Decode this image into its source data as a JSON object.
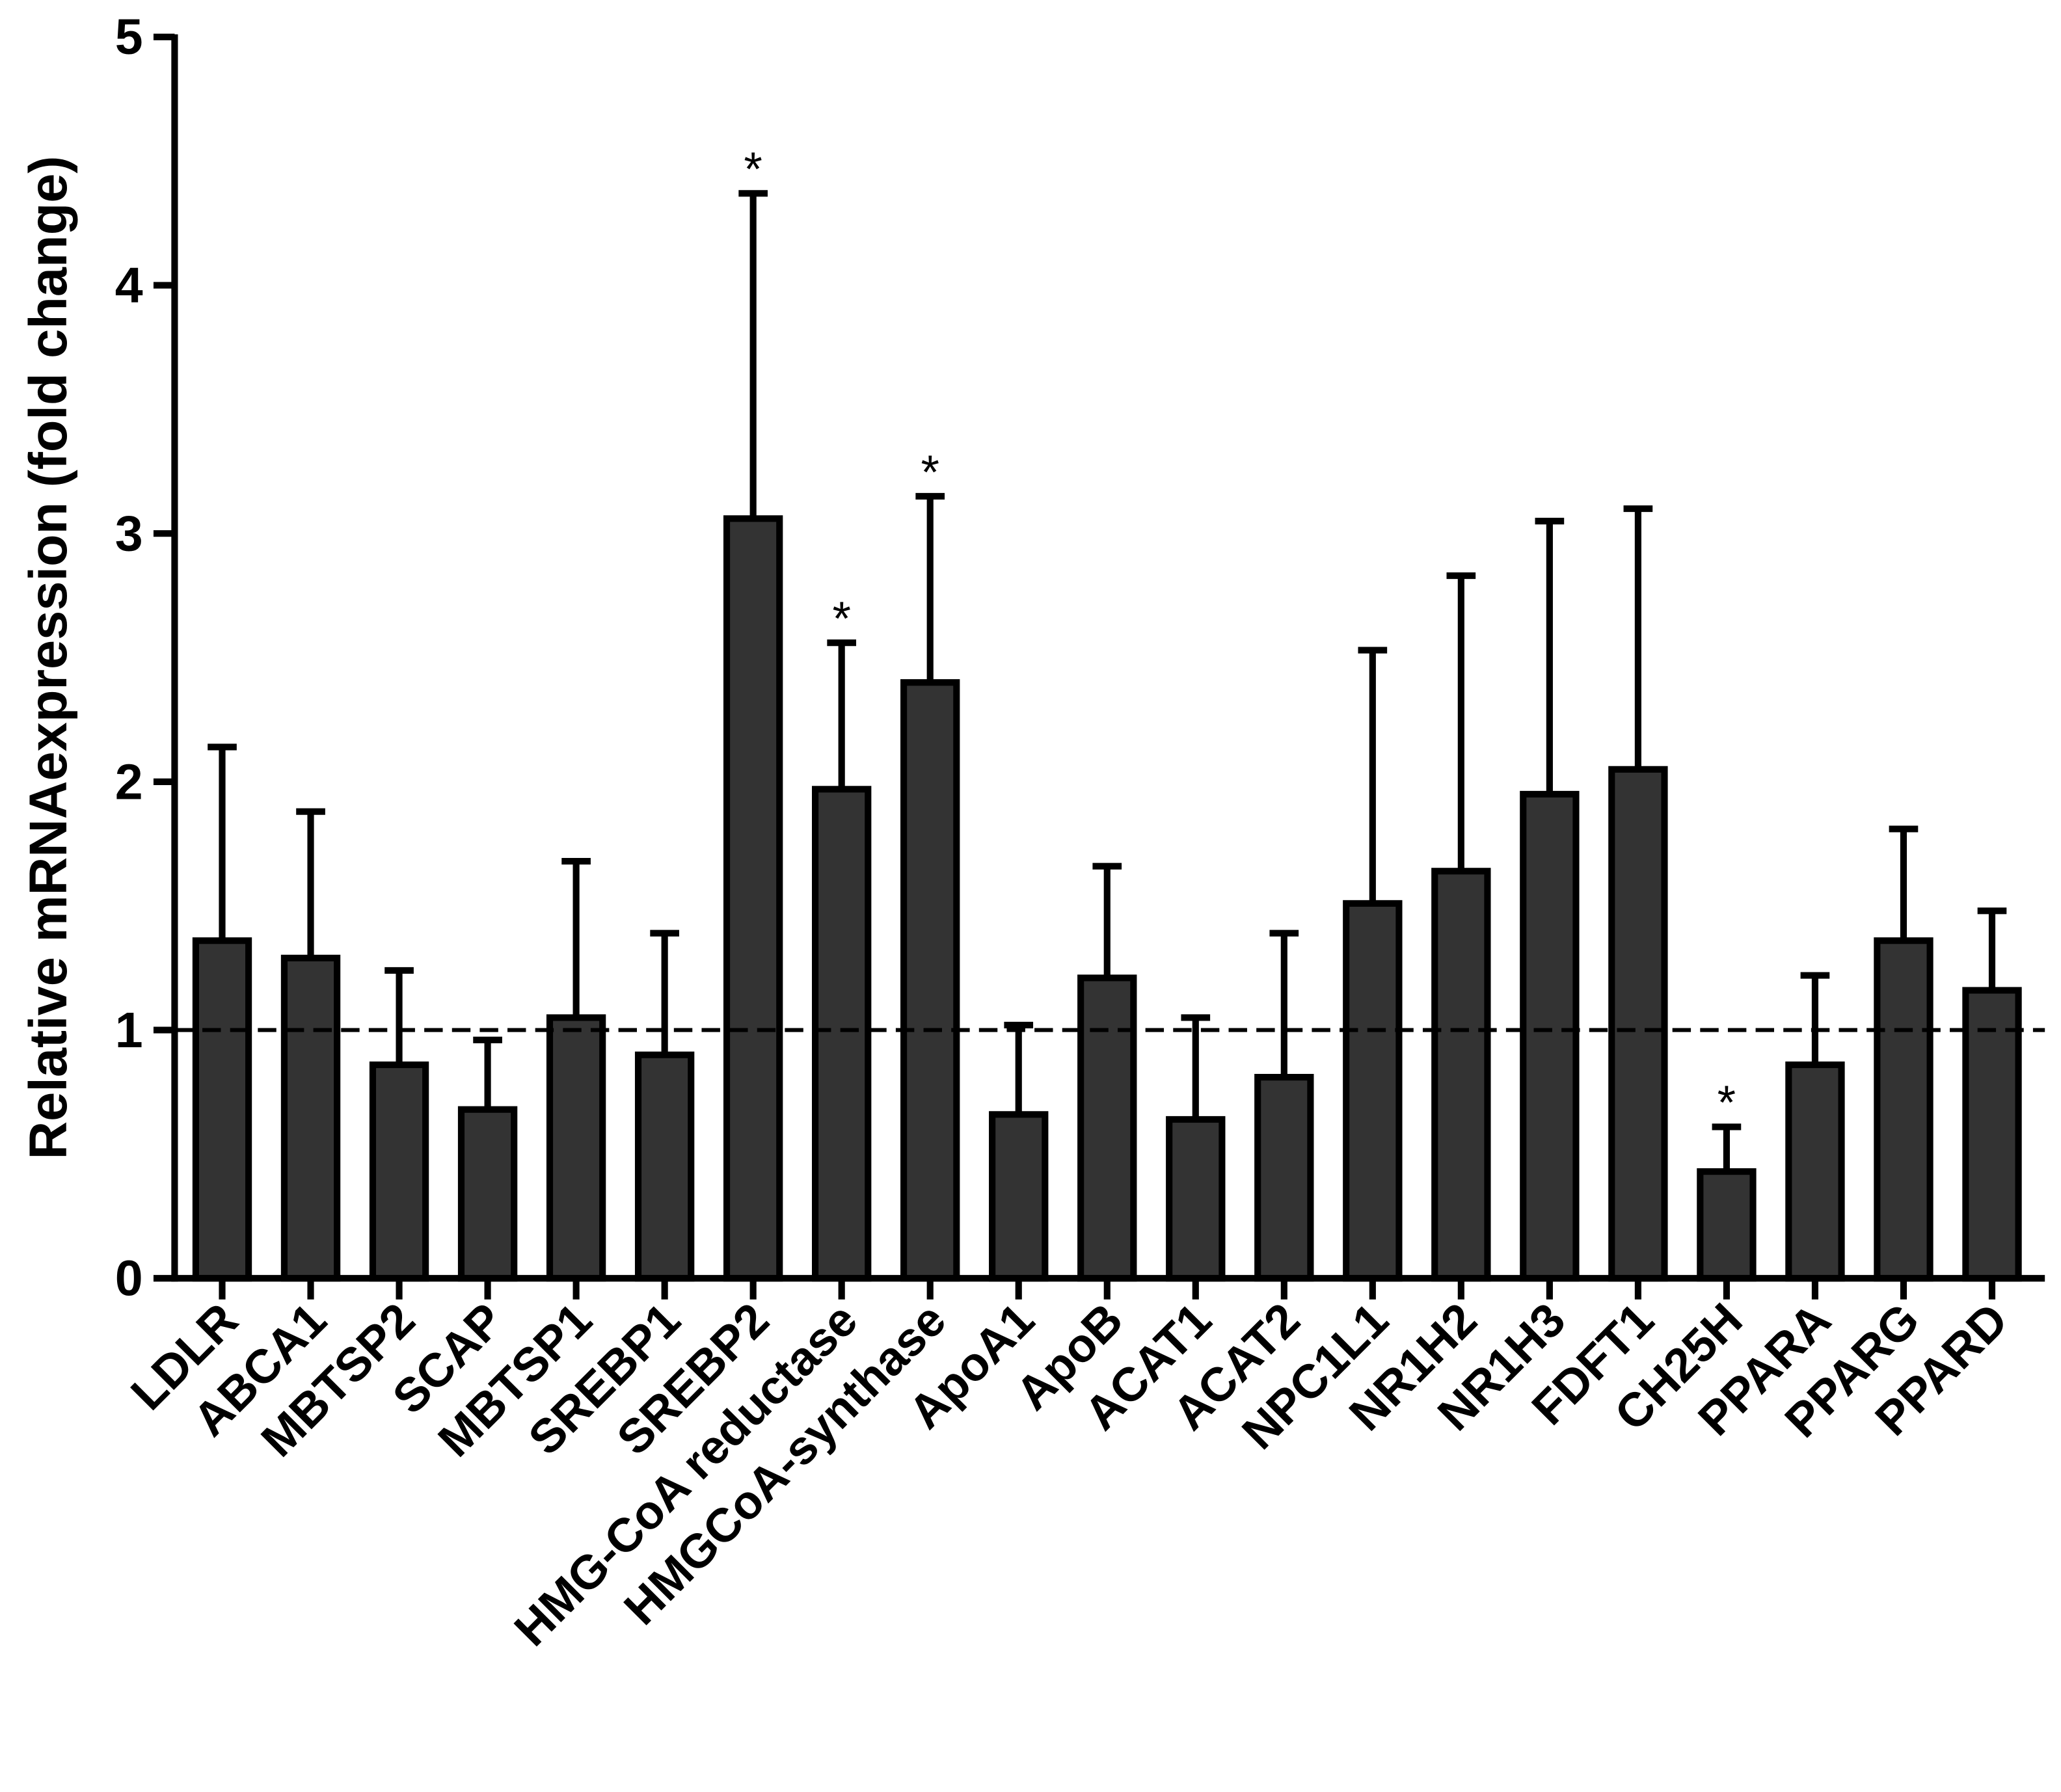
{
  "chart_data": {
    "type": "bar",
    "y_label": "Relative mRNAexpression (fold change)",
    "categories": [
      "LDLR",
      "ABCA1",
      "MBTSP2",
      "SCAP",
      "MBTSP1",
      "SREBP1",
      "SREBP2",
      "HMG-CoA reductase",
      "HMGCoA-synthase",
      "ApoA1",
      "ApoB",
      "ACAT1",
      "ACAT2",
      "NPC1L1",
      "NR1H2",
      "NR1H3",
      "FDFT1",
      "CH25H",
      "PPARA",
      "PPARG",
      "PPARD"
    ],
    "values": [
      1.36,
      1.29,
      0.86,
      0.68,
      1.05,
      0.9,
      3.06,
      1.97,
      2.4,
      0.66,
      1.21,
      0.64,
      0.81,
      1.51,
      1.64,
      1.95,
      2.05,
      0.43,
      0.86,
      1.36,
      1.16
    ],
    "errors": [
      0.78,
      0.59,
      0.38,
      0.28,
      0.63,
      0.49,
      1.31,
      0.59,
      0.75,
      0.36,
      0.45,
      0.41,
      0.58,
      1.02,
      1.19,
      1.1,
      1.05,
      0.18,
      0.36,
      0.45,
      0.32
    ],
    "color": "#333333",
    "reference_line": 1,
    "annotations": [
      {
        "category": "SREBP2",
        "text": "*"
      },
      {
        "category": "HMG-CoA reductase",
        "text": "*"
      },
      {
        "category": "HMGCoA-synthase",
        "text": "*"
      },
      {
        "category": "CH25H",
        "text": "*"
      }
    ],
    "ylim": [
      0,
      5
    ],
    "yticks": [
      0,
      1,
      2,
      3,
      4,
      5
    ]
  }
}
